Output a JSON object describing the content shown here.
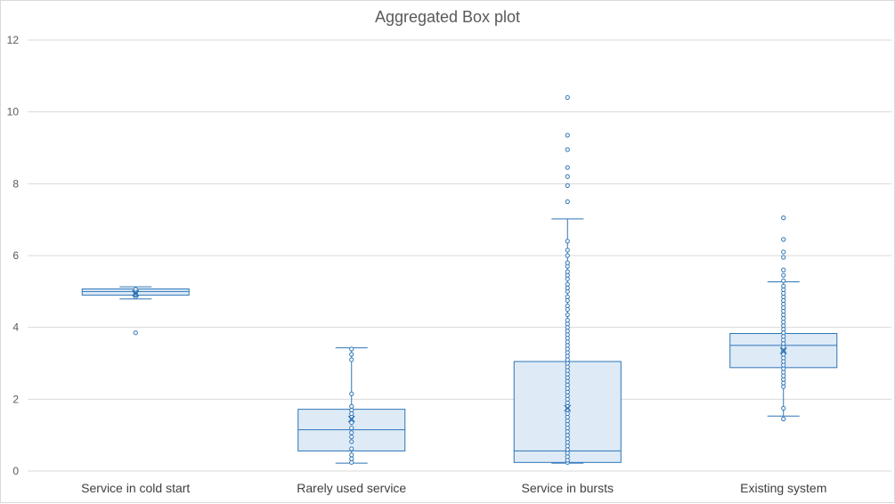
{
  "chart_data": {
    "type": "box",
    "title": "Aggregated Box plot",
    "xlabel": "",
    "ylabel": "",
    "ylim": [
      0,
      12
    ],
    "yticks": [
      0,
      2,
      4,
      6,
      8,
      10,
      12
    ],
    "grid": true,
    "legend": "none",
    "colors": {
      "stroke": "#2e75b6",
      "fill": "#deebf7",
      "grid": "#d9d9d9",
      "text": "#595959"
    },
    "categories": [
      "Service in cold start",
      "Rarely used service",
      "Service in bursts",
      "Existing system"
    ],
    "boxes": [
      {
        "category": "Service in cold start",
        "whisker_low": 4.79,
        "q1": 4.9,
        "median": 5.0,
        "q3": 5.07,
        "whisker_high": 5.13,
        "mean": 4.95,
        "points": [
          4.85,
          4.9,
          4.93,
          4.97,
          5.0,
          5.03,
          5.06,
          3.85
        ]
      },
      {
        "category": "Rarely used service",
        "whisker_low": 0.22,
        "q1": 0.56,
        "median": 1.15,
        "q3": 1.72,
        "whisker_high": 3.43,
        "mean": 1.45,
        "points": [
          0.24,
          0.34,
          0.45,
          0.62,
          0.82,
          0.95,
          1.07,
          1.2,
          1.35,
          1.5,
          1.6,
          1.7,
          1.8,
          2.15,
          3.1,
          3.25,
          3.4
        ]
      },
      {
        "category": "Service in bursts",
        "whisker_low": 0.22,
        "q1": 0.24,
        "median": 0.56,
        "q3": 3.05,
        "whisker_high": 7.02,
        "mean": 1.75,
        "points": [
          0.24,
          0.3,
          0.4,
          0.5,
          0.6,
          0.7,
          0.8,
          0.9,
          1.0,
          1.1,
          1.2,
          1.3,
          1.4,
          1.5,
          1.6,
          1.7,
          1.8,
          1.9,
          2.0,
          2.1,
          2.2,
          2.3,
          2.4,
          2.5,
          2.6,
          2.7,
          2.8,
          2.9,
          3.0,
          3.1,
          3.2,
          3.3,
          3.4,
          3.5,
          3.6,
          3.7,
          3.8,
          3.9,
          4.0,
          4.1,
          4.2,
          4.35,
          4.5,
          4.6,
          4.75,
          4.85,
          5.0,
          5.1,
          5.2,
          5.35,
          5.45,
          5.55,
          5.7,
          5.8,
          6.0,
          6.15,
          6.4,
          7.5,
          7.95,
          8.2,
          8.45,
          8.95,
          9.35,
          10.4
        ]
      },
      {
        "category": "Existing system",
        "whisker_low": 1.53,
        "q1": 2.88,
        "median": 3.5,
        "q3": 3.83,
        "whisker_high": 5.27,
        "mean": 3.35,
        "points": [
          1.45,
          1.75,
          2.35,
          2.45,
          2.55,
          2.65,
          2.75,
          2.85,
          2.95,
          3.05,
          3.15,
          3.25,
          3.35,
          3.45,
          3.55,
          3.65,
          3.75,
          3.85,
          3.95,
          4.05,
          4.15,
          4.25,
          4.35,
          4.45,
          4.55,
          4.65,
          4.75,
          4.85,
          4.95,
          5.05,
          5.15,
          5.3,
          5.45,
          5.6,
          5.95,
          6.1,
          6.45,
          7.05
        ]
      }
    ]
  }
}
